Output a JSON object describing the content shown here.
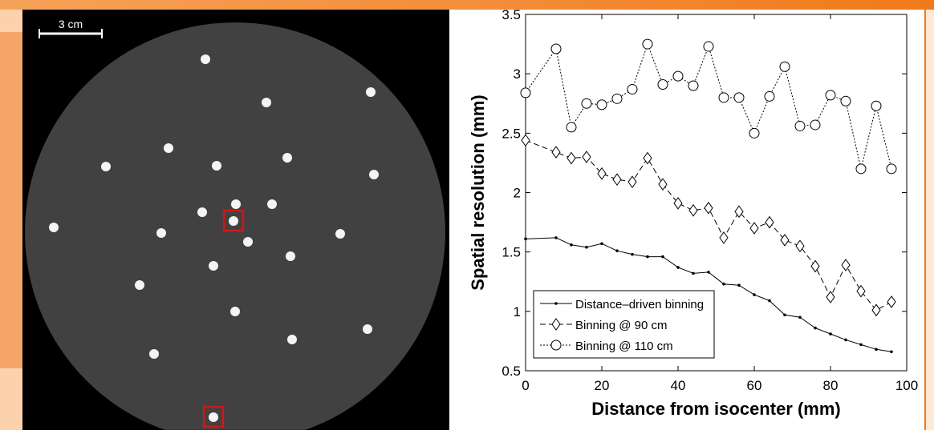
{
  "image": {
    "scale_label": "3 cm"
  },
  "chart_data": {
    "type": "line",
    "xlabel": "Distance from isocenter (mm)",
    "ylabel": "Spatial resolution (mm)",
    "x": [
      0,
      8,
      12,
      16,
      20,
      24,
      28,
      32,
      36,
      40,
      44,
      48,
      52,
      56,
      60,
      64,
      68,
      72,
      76,
      80,
      84,
      88,
      92,
      96
    ],
    "series": [
      {
        "name": "Distance–driven binning",
        "color": "#000000",
        "marker": "dot",
        "dash": "none",
        "values": [
          1.61,
          1.62,
          1.56,
          1.54,
          1.57,
          1.51,
          1.48,
          1.46,
          1.46,
          1.37,
          1.32,
          1.33,
          1.23,
          1.22,
          1.14,
          1.09,
          0.97,
          0.95,
          0.86,
          0.81,
          0.76,
          0.72,
          0.68,
          0.66
        ]
      },
      {
        "name": "Binning @ 90 cm",
        "color": "#000000",
        "marker": "diamond",
        "dash": "7 4",
        "values": [
          2.44,
          2.34,
          2.29,
          2.3,
          2.16,
          2.11,
          2.09,
          2.29,
          2.07,
          1.91,
          1.85,
          1.87,
          1.62,
          1.84,
          1.7,
          1.75,
          1.6,
          1.55,
          1.38,
          1.12,
          1.39,
          1.17,
          1.01,
          1.08
        ]
      },
      {
        "name": "Binning @ 110 cm",
        "color": "#000000",
        "marker": "circle",
        "dash": "2 2",
        "values": [
          2.84,
          3.21,
          2.55,
          2.75,
          2.74,
          2.79,
          2.87,
          3.25,
          2.91,
          2.98,
          2.9,
          3.23,
          2.8,
          2.8,
          2.5,
          2.81,
          3.06,
          2.56,
          2.57,
          2.82,
          2.77,
          2.2,
          2.73,
          2.2
        ]
      }
    ],
    "xlim": [
      0,
      100
    ],
    "xticks": [
      0,
      20,
      40,
      60,
      80,
      100
    ],
    "ylim": [
      0.5,
      3.5
    ],
    "yticks": [
      0.5,
      1,
      1.5,
      2,
      2.5,
      3,
      3.5
    ],
    "legend": "lower-left"
  }
}
